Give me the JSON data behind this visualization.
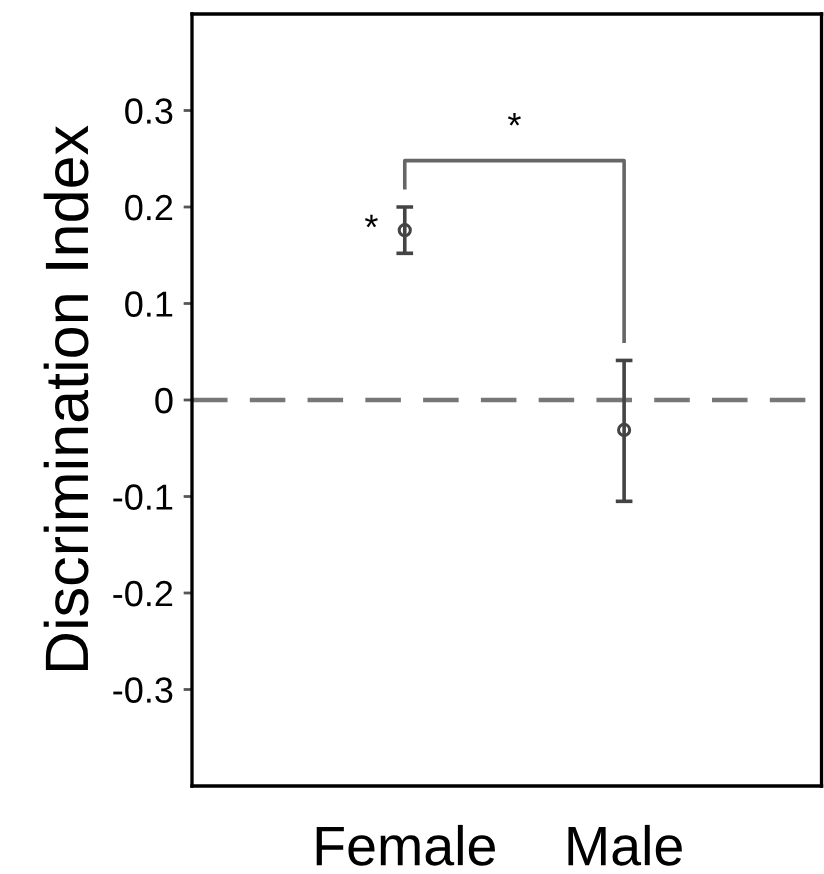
{
  "chart_data": {
    "type": "scatter",
    "ylabel": "Discrimination Index",
    "categories": [
      "Female",
      "Male"
    ],
    "series": [
      {
        "color": "#444444",
        "values": [
          0.176,
          -0.031
        ],
        "errors": [
          [
            0.152,
            0.2
          ],
          [
            -0.105,
            0.041
          ]
        ]
      }
    ],
    "ylim": [
      -0.4,
      0.4
    ],
    "yticks": [
      0.3,
      0.2,
      0.1,
      {
        "value": 0,
        "label": "0"
      },
      -0.1,
      -0.2,
      -0.3
    ],
    "ref_lines": [
      {
        "axis": "y",
        "value": 0,
        "color": "#777777",
        "line_style": "dashed"
      }
    ],
    "annotations": [
      "*",
      "*"
    ],
    "marker": "circle",
    "grid": false
  }
}
